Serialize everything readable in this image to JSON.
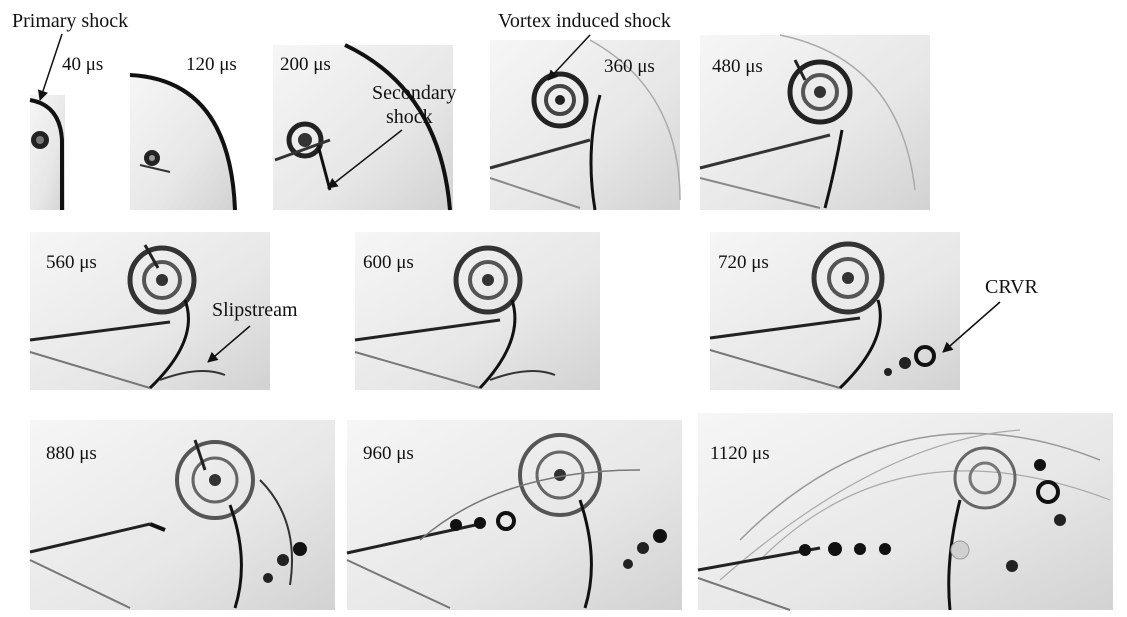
{
  "figure": {
    "panels": [
      {
        "id": "p40",
        "time_label": "40 μs"
      },
      {
        "id": "p120",
        "time_label": "120 μs"
      },
      {
        "id": "p200",
        "time_label": "200 μs"
      },
      {
        "id": "p360",
        "time_label": "360 μs"
      },
      {
        "id": "p480",
        "time_label": "480 μs"
      },
      {
        "id": "p560",
        "time_label": "560 μs"
      },
      {
        "id": "p600",
        "time_label": "600 μs"
      },
      {
        "id": "p720",
        "time_label": "720 μs"
      },
      {
        "id": "p880",
        "time_label": "880 μs"
      },
      {
        "id": "p960",
        "time_label": "960 μs"
      },
      {
        "id": "p1120",
        "time_label": "1120 μs"
      }
    ],
    "annotations": {
      "primary_shock": "Primary shock",
      "vortex_induced_shock": "Vortex induced shock",
      "secondary_shock_line1": "Secondary",
      "secondary_shock_line2": "shock",
      "slipstream": "Slipstream",
      "crvr": "CRVR"
    }
  }
}
